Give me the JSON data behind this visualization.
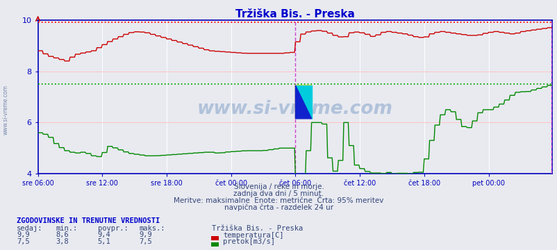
{
  "title": "Tržiška Bis. - Preska",
  "title_color": "#0000cc",
  "bg_color": "#e8eaf0",
  "plot_bg_color": "#e8eaf0",
  "grid_color": "#ffffff",
  "axis_color": "#0000bb",
  "tick_color": "#0000bb",
  "temp_color": "#cc0000",
  "flow_color": "#008800",
  "temp_max_dotted_color": "#ff0000",
  "flow_max_dotted_color": "#00aa00",
  "vline_color": "#cc44cc",
  "border_color": "#0000bb",
  "ylim": [
    4.0,
    10.0
  ],
  "yticks": [
    4,
    6,
    8,
    10
  ],
  "n_points": 576,
  "temp_max": 9.9,
  "flow_max": 7.5,
  "subtitle1": "Slovenija / reke in morje.",
  "subtitle2": "zadnja dva dni / 5 minut.",
  "subtitle3": "Meritve: maksimalne  Enote: metrične  Črta: 95% meritev",
  "subtitle4": "navpična črta - razdelek 24 ur",
  "stat_header": "ZGODOVINSKE IN TRENUTNE VREDNOSTI",
  "stat_cols": [
    "sedaj:",
    "min.:",
    "povpr.:",
    "maks.:"
  ],
  "stat_row1": [
    "9,9",
    "8,6",
    "9,4",
    "9,9"
  ],
  "stat_row2": [
    "7,5",
    "3,8",
    "5,1",
    "7,5"
  ],
  "legend_title": "Tržiška Bis. - Preska",
  "legend1": "temperatura[C]",
  "legend2": "pretok[m3/s]",
  "xticklabels": [
    "sre 06:00",
    "sre 12:00",
    "sre 18:00",
    "čet 00:00",
    "čet 06:00",
    "čet 12:00",
    "čet 18:00",
    "pet 00:00"
  ],
  "xtick_positions": [
    0,
    72,
    144,
    216,
    288,
    360,
    432,
    504
  ],
  "vline_pos": 288,
  "watermark": "www.si-vreme.com"
}
